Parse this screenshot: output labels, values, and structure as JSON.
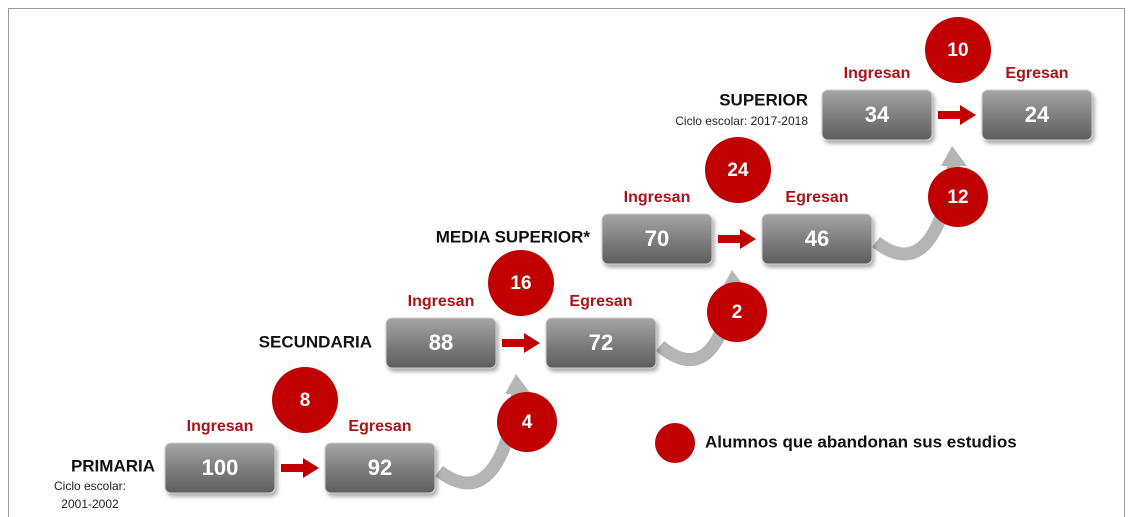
{
  "levels": [
    {
      "name": "PRIMARIA",
      "cycle": [
        "Ciclo escolar:",
        "2001-2002"
      ],
      "in_label": "Ingresan",
      "out_label": "Egresan",
      "entering": "100",
      "exiting": "92",
      "dropout": "8"
    },
    {
      "name": "SECUNDARIA",
      "in_label": "Ingresan",
      "out_label": "Egresan",
      "entering": "88",
      "exiting": "72",
      "dropout": "16"
    },
    {
      "name": "MEDIA SUPERIOR*",
      "in_label": "Ingresan",
      "out_label": "Egresan",
      "entering": "70",
      "exiting": "46",
      "dropout": "24"
    },
    {
      "name": "SUPERIOR",
      "cycle": [
        "Ciclo escolar: 2017-2018"
      ],
      "in_label": "Ingresan",
      "out_label": "Egresan",
      "entering": "34",
      "exiting": "24",
      "dropout": "10"
    }
  ],
  "transitions": [
    "4",
    "2",
    "12"
  ],
  "legend": "Alumnos que abandonan sus estudios"
}
